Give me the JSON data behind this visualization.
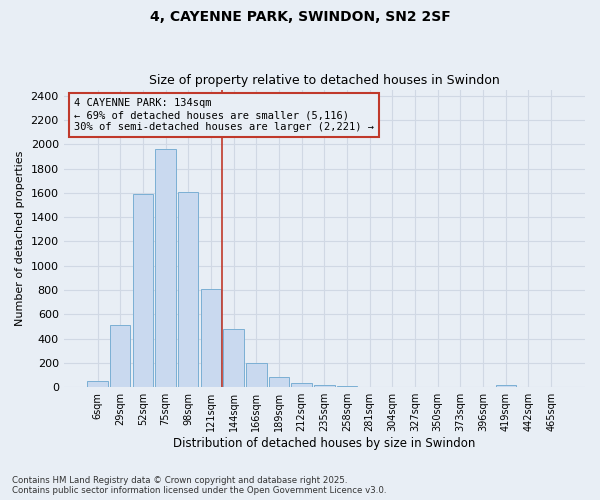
{
  "title": "4, CAYENNE PARK, SWINDON, SN2 2SF",
  "subtitle": "Size of property relative to detached houses in Swindon",
  "xlabel": "Distribution of detached houses by size in Swindon",
  "ylabel": "Number of detached properties",
  "categories": [
    "6sqm",
    "29sqm",
    "52sqm",
    "75sqm",
    "98sqm",
    "121sqm",
    "144sqm",
    "166sqm",
    "189sqm",
    "212sqm",
    "235sqm",
    "258sqm",
    "281sqm",
    "304sqm",
    "327sqm",
    "350sqm",
    "373sqm",
    "396sqm",
    "419sqm",
    "442sqm",
    "465sqm"
  ],
  "values": [
    50,
    510,
    1590,
    1960,
    1610,
    810,
    480,
    200,
    85,
    35,
    22,
    10,
    5,
    3,
    2,
    1,
    0,
    0,
    20,
    0,
    0
  ],
  "bar_color": "#c9d9ef",
  "bar_edge_color": "#7bafd4",
  "vline_color": "#c0392b",
  "vline_index": 5.5,
  "annotation_text": "4 CAYENNE PARK: 134sqm\n← 69% of detached houses are smaller (5,116)\n30% of semi-detached houses are larger (2,221) →",
  "annotation_box_color": "#c0392b",
  "bg_color": "#e8eef5",
  "grid_color": "#d0d8e4",
  "ylim": [
    0,
    2450
  ],
  "yticks": [
    0,
    200,
    400,
    600,
    800,
    1000,
    1200,
    1400,
    1600,
    1800,
    2000,
    2200,
    2400
  ],
  "title_fontsize": 10,
  "subtitle_fontsize": 9,
  "footer": "Contains HM Land Registry data © Crown copyright and database right 2025.\nContains public sector information licensed under the Open Government Licence v3.0."
}
